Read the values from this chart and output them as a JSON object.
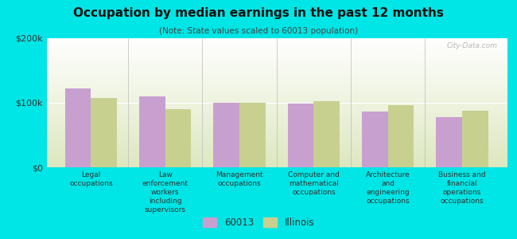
{
  "title": "Occupation by median earnings in the past 12 months",
  "subtitle": "(Note: State values scaled to 60013 population)",
  "background_color": "#00e5e5",
  "plot_bg_top": "#ffffff",
  "plot_bg_bottom": "#dde8c0",
  "categories": [
    "Legal\noccupations",
    "Law\nenforcement\nworkers\nincluding\nsupervisors",
    "Management\noccupations",
    "Computer and\nmathematical\noccupations",
    "Architecture\nand\nengineering\noccupations",
    "Business and\nfinancial\noperations\noccupations"
  ],
  "values_60013": [
    122000,
    110000,
    100000,
    99000,
    86000,
    78000
  ],
  "values_illinois": [
    108000,
    90000,
    100000,
    102000,
    96000,
    88000
  ],
  "color_60013": "#c8a0d0",
  "color_illinois": "#c8d090",
  "ylim": [
    0,
    200000
  ],
  "yticks": [
    0,
    100000,
    200000
  ],
  "ytick_labels": [
    "$0",
    "$100k",
    "$200k"
  ],
  "legend_label_60013": "60013",
  "legend_label_illinois": "Illinois",
  "watermark": "City-Data.com",
  "bar_width": 0.35
}
